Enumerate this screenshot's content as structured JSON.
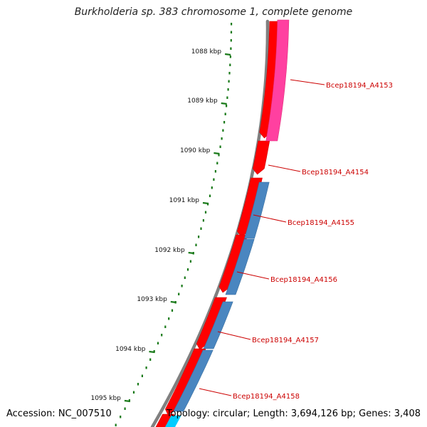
{
  "title": "Burkholderia sp. 383 chromosome 1, complete genome",
  "footer": {
    "accession": "Accession: NC_007510",
    "topology": "Topology: circular; Length: 3,694,126 bp; Genes: 3,408"
  },
  "colors": {
    "backbone": "#808080",
    "tick_green": "#1a7a1a",
    "gene_red": "#ff0000",
    "label_red": "#cc0000",
    "pink": "#ff40a0",
    "steelblue": "#4a86c0",
    "blue": "#0000ee",
    "cyan": "#00ccff"
  },
  "scale_labels": [
    "1088 kbp",
    "1089 kbp",
    "1090 kbp",
    "1091 kbp",
    "1092 kbp",
    "1093 kbp",
    "1094 kbp",
    "1095 kbp"
  ],
  "gene_labels": [
    "Bcep18194_A4153",
    "Bcep18194_A4154",
    "Bcep18194_A4155",
    "Bcep18194_A4156",
    "Bcep18194_A4157",
    "Bcep18194_A4158"
  ]
}
